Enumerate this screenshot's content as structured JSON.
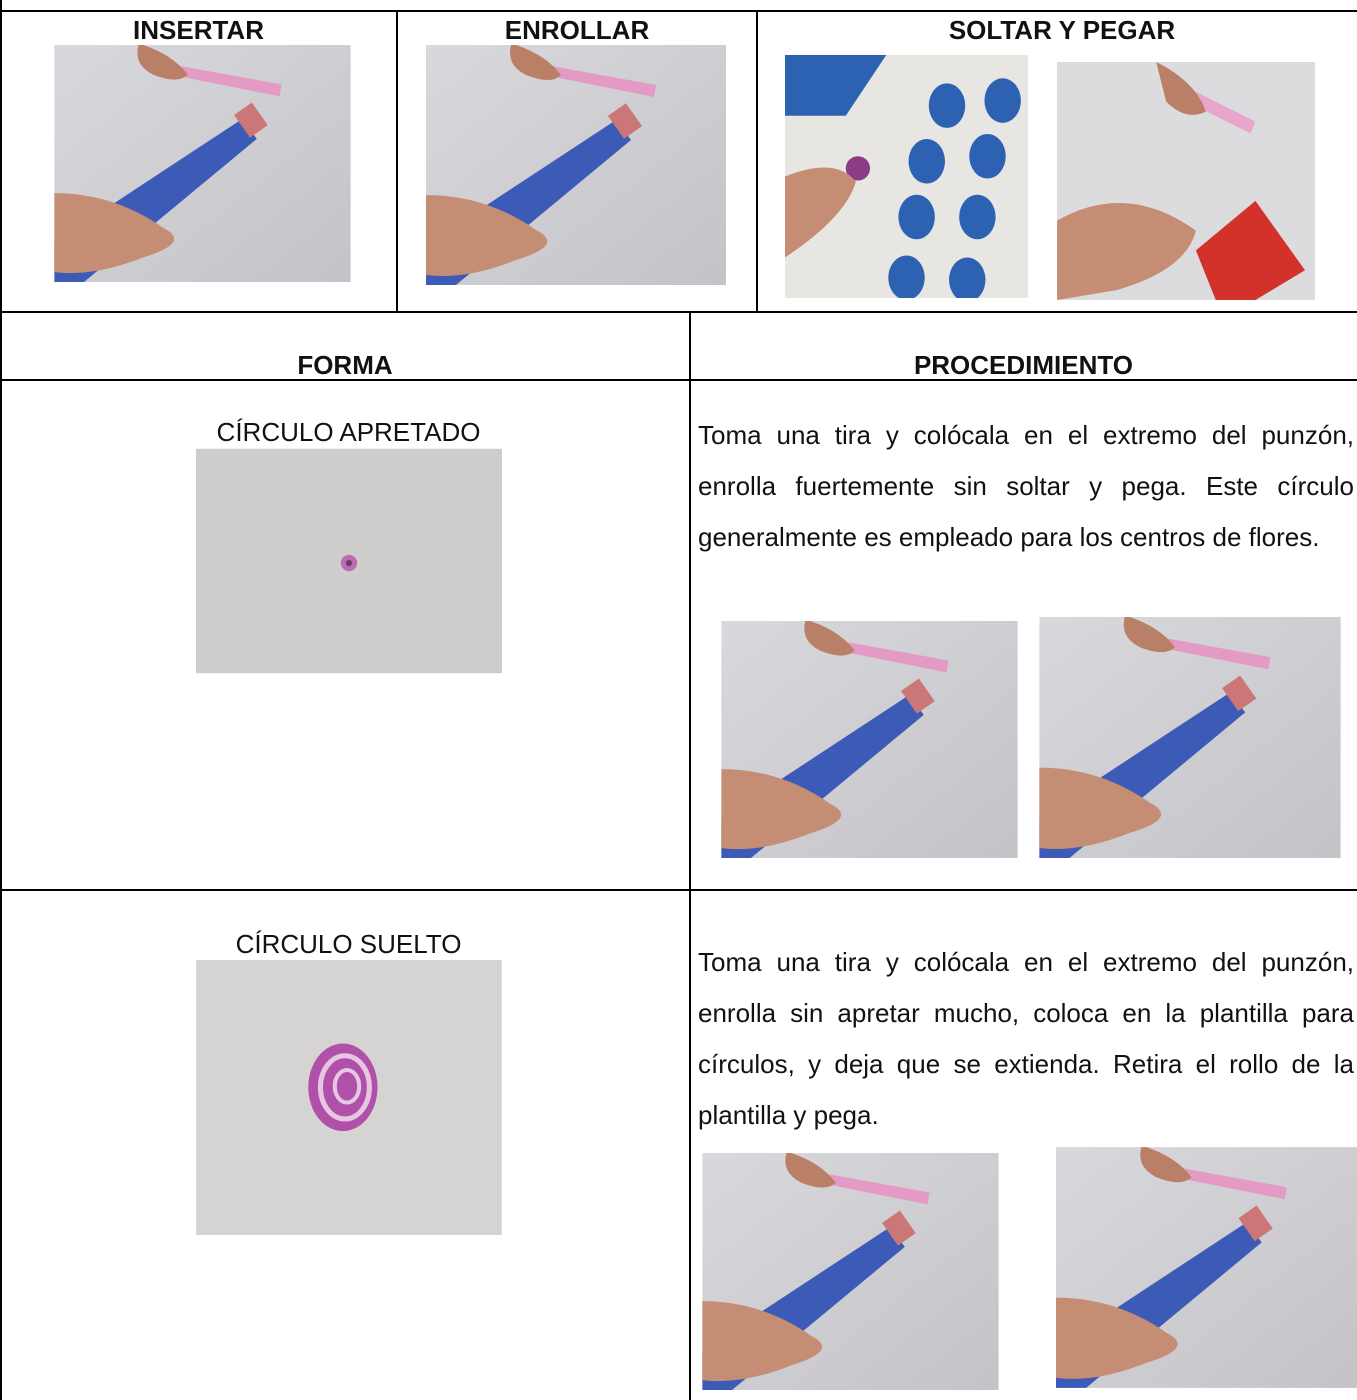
{
  "steps": {
    "headers": [
      "INSERTAR",
      "ENROLLAR",
      "SOLTAR Y PEGAR"
    ]
  },
  "table": {
    "headers": [
      "FORMA",
      "PROCEDIMIENTO"
    ],
    "rows": [
      {
        "shape": "CÍRCULO APRETADO",
        "procedure": "Toma una tira y colócala en el extremo del punzón, enrolla fuertemente  sin soltar y pega. Este círculo generalmente es empleado para los centros de flores."
      },
      {
        "shape": "CÍRCULO SUELTO",
        "procedure": "Toma una tira y colócala en el extremo del punzón, enrolla sin apretar mucho, coloca en la plantilla para círculos,  y deja que se extienda. Retira el rollo de la plantilla y pega."
      }
    ]
  }
}
